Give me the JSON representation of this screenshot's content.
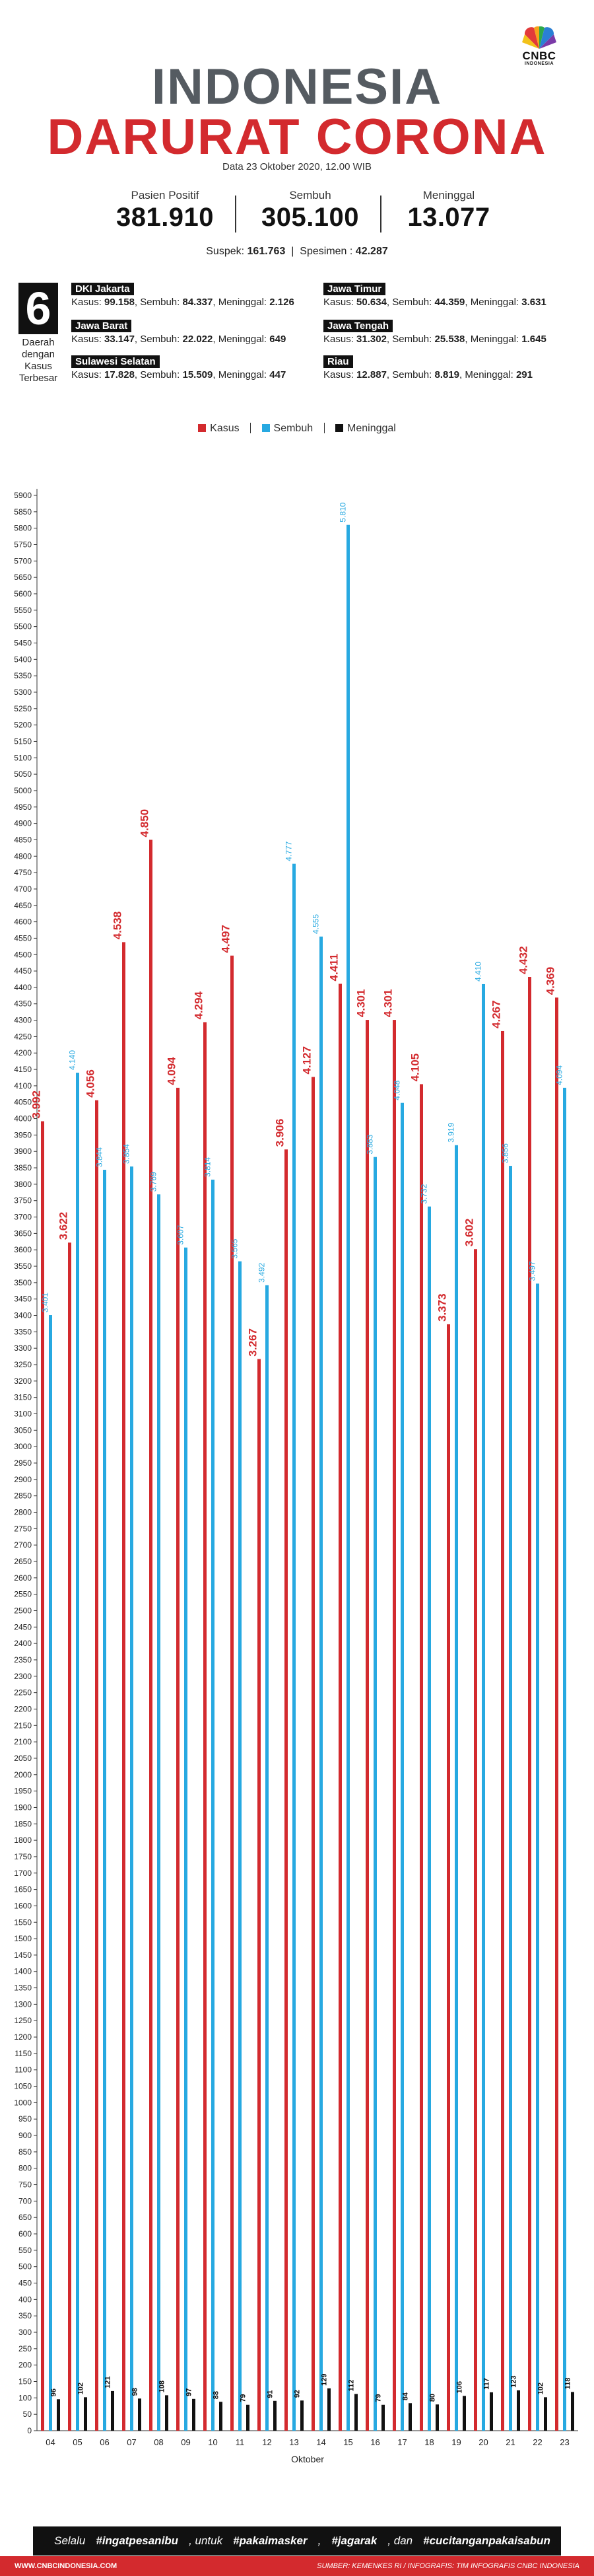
{
  "logo": {
    "line1": "CNBC",
    "line2": "INDONESIA"
  },
  "header": {
    "title_line1": "INDONESIA",
    "title_line2": "DARURAT CORONA",
    "date": "Data 23 Oktober 2020, 12.00 WIB"
  },
  "stats": [
    {
      "label": "Pasien Positif",
      "value": "381.910"
    },
    {
      "label": "Sembuh",
      "value": "305.100"
    },
    {
      "label": "Meninggal",
      "value": "13.077"
    }
  ],
  "extra": {
    "suspek_label": "Suspek:",
    "suspek_value": "161.763",
    "spesimen_label": "Spesimen :",
    "spesimen_value": "42.287"
  },
  "top_regions": {
    "count": "6",
    "label": "Daerah dengan Kasus Terbesar",
    "kasus_label": "Kasus:",
    "sembuh_label": "Sembuh:",
    "meninggal_label": "Meninggal:",
    "items": [
      {
        "name": "DKI Jakarta",
        "kasus": "99.158",
        "sembuh": "84.337",
        "meninggal": "2.126"
      },
      {
        "name": "Jawa Timur",
        "kasus": "50.634",
        "sembuh": "44.359",
        "meninggal": "3.631"
      },
      {
        "name": "Jawa Barat",
        "kasus": "33.147",
        "sembuh": "22.022",
        "meninggal": "649"
      },
      {
        "name": "Jawa Tengah",
        "kasus": "31.302",
        "sembuh": "25.538",
        "meninggal": "1.645"
      },
      {
        "name": "Sulawesi Selatan",
        "kasus": "17.828",
        "sembuh": "15.509",
        "meninggal": "447"
      },
      {
        "name": "Riau",
        "kasus": "12.887",
        "sembuh": "8.819",
        "meninggal": "291"
      }
    ]
  },
  "colors": {
    "kasus": "#d32a2e",
    "sembuh": "#27a9e1",
    "meninggal": "#111111",
    "title_gray": "#555b61"
  },
  "chart_data": {
    "type": "bar",
    "categories": [
      "04",
      "05",
      "06",
      "07",
      "08",
      "09",
      "10",
      "11",
      "12",
      "13",
      "14",
      "15",
      "16",
      "17",
      "18",
      "19",
      "20",
      "21",
      "22",
      "23"
    ],
    "series": [
      {
        "name": "Kasus",
        "values": [
          3992,
          3622,
          4056,
          4538,
          4850,
          4094,
          4294,
          4497,
          3267,
          3906,
          4127,
          4411,
          4301,
          4301,
          4105,
          3373,
          3602,
          4267,
          4432,
          4369
        ],
        "labels": [
          "3.992",
          "3.622",
          "4.056",
          "4.538",
          "4.850",
          "4.094",
          "4.294",
          "4.497",
          "3.267",
          "3.906",
          "4.127",
          "4.411",
          "4.301",
          "4.301",
          "4.105",
          "3.373",
          "3.602",
          "4.267",
          "4.432",
          "4.369"
        ]
      },
      {
        "name": "Sembuh",
        "values": [
          3401,
          4140,
          3844,
          3854,
          3769,
          3607,
          3814,
          3565,
          3492,
          4777,
          4555,
          5810,
          3883,
          4048,
          3732,
          3919,
          4410,
          3856,
          3497,
          4094
        ],
        "labels": [
          "3.401",
          "4.140",
          "3.844",
          "3.854",
          "3.769",
          "3.607",
          "3.814",
          "3.565",
          "3.492",
          "4.777",
          "4.555",
          "5.810",
          "3.883",
          "4.048",
          "3.732",
          "3.919",
          "4.410",
          "3.856",
          "3.497",
          "4.094"
        ]
      },
      {
        "name": "Meninggal",
        "values": [
          96,
          102,
          121,
          98,
          108,
          97,
          88,
          79,
          91,
          92,
          129,
          112,
          79,
          84,
          80,
          106,
          117,
          123,
          102,
          118
        ],
        "labels": [
          "96",
          "102",
          "121",
          "98",
          "108",
          "97",
          "88",
          "79",
          "91",
          "92",
          "129",
          "112",
          "79",
          "84",
          "80",
          "106",
          "117",
          "123",
          "102",
          "118"
        ]
      }
    ],
    "xlabel": "Oktober",
    "ylabel": "",
    "ylim": [
      0,
      5900
    ],
    "ytick_step": 50,
    "grid": false,
    "legend_position": "top"
  },
  "footer": {
    "banner_prefix": "Selalu ",
    "banner_t1": "#ingatpesanibu",
    "banner_mid1": ", untuk ",
    "banner_t2": "#pakaimasker",
    "banner_mid2": ", ",
    "banner_t3": "#jagarak",
    "banner_mid3": ", dan ",
    "banner_t4": "#cucitanganpakaisabun",
    "site": "WWW.CNBCINDONESIA.COM",
    "credits": "SUMBER: KEMENKES RI / INFOGRAFIS: TIM INFOGRAFIS CNBC INDONESIA"
  }
}
